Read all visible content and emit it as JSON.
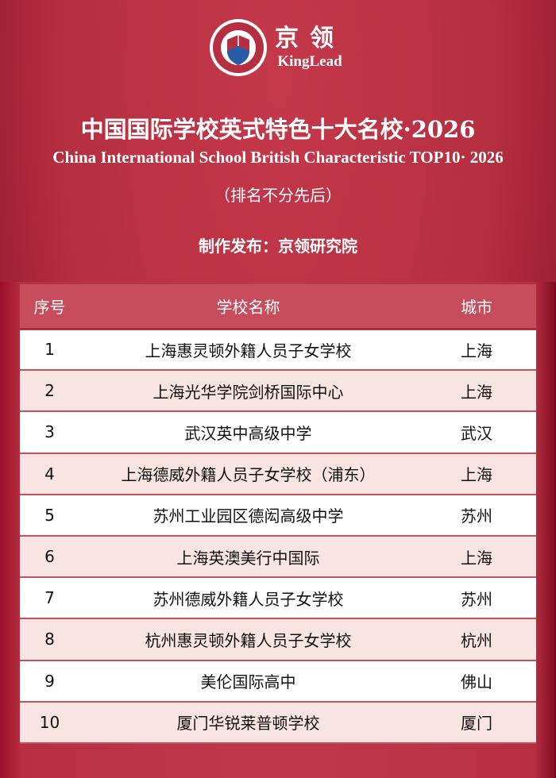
{
  "logo": {
    "cn": "京领",
    "en": "KingLead",
    "ring_top": "京领",
    "ring_bottom": "KingLead"
  },
  "title_cn": "中国国际学校英式特色十大名校·2026",
  "title_en": "China International School British Characteristic TOP10· 2026",
  "note": "（排名不分先后）",
  "publisher": "制作发布：京领研究院",
  "colors": {
    "background": "#b8313f",
    "header": "#c84d5c",
    "row_alt": "#f8e5e2"
  },
  "table": {
    "headers": [
      "序号",
      "学校名称",
      "城市"
    ],
    "rows": [
      [
        "1",
        "上海惠灵顿外籍人员子女学校",
        "上海"
      ],
      [
        "2",
        "上海光华学院剑桥国际中心",
        "上海"
      ],
      [
        "3",
        "武汉英中高级中学",
        "武汉"
      ],
      [
        "4",
        "上海德威外籍人员子女学校（浦东）",
        "上海"
      ],
      [
        "5",
        "苏州工业园区德闳高级中学",
        "苏州"
      ],
      [
        "6",
        "上海英澳美行中国际",
        "上海"
      ],
      [
        "7",
        "苏州德威外籍人员子女学校",
        "苏州"
      ],
      [
        "8",
        "杭州惠灵顿外籍人员子女学校",
        "杭州"
      ],
      [
        "9",
        "美伦国际高中",
        "佛山"
      ],
      [
        "10",
        "厦门华锐莱普顿学校",
        "厦门"
      ]
    ]
  }
}
